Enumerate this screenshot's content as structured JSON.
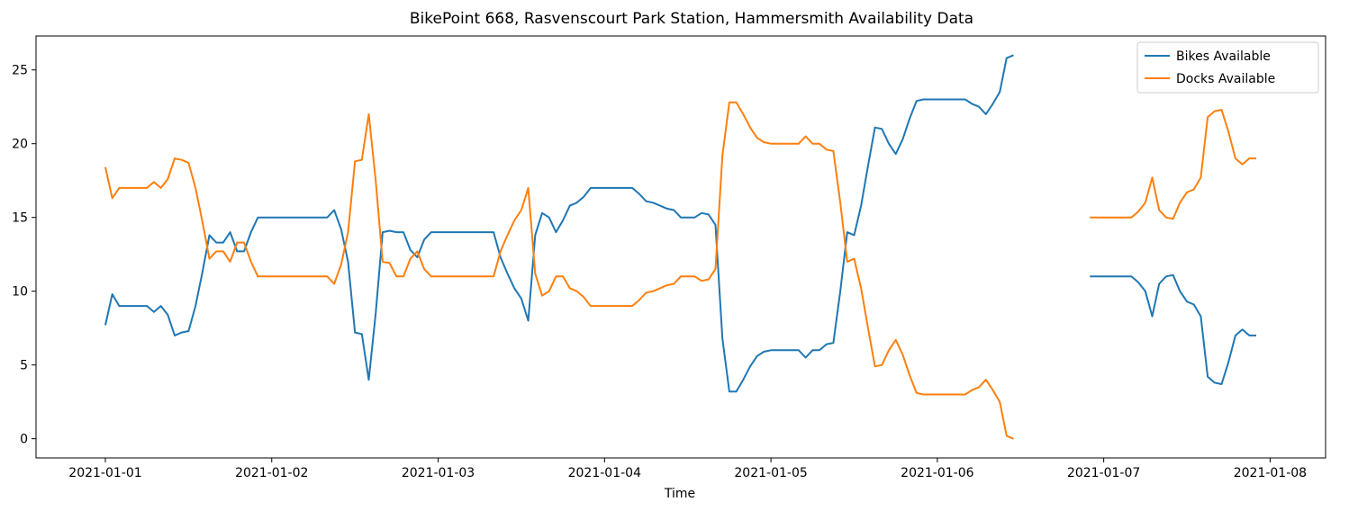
{
  "chart_data": {
    "type": "line",
    "title": "BikePoint 668, Rasvenscourt Park Station, Hammersmith Availability Data",
    "xlabel": "Time",
    "ylabel": "",
    "xlim": [
      "2020-12-31T14:00",
      "2021-01-08T08:00"
    ],
    "ylim": [
      -1.3,
      27.3
    ],
    "x_ticks": [
      "2021-01-01",
      "2021-01-02",
      "2021-01-03",
      "2021-01-04",
      "2021-01-05",
      "2021-01-06",
      "2021-01-07",
      "2021-01-08"
    ],
    "y_ticks": [
      0,
      5,
      10,
      15,
      20,
      25
    ],
    "grid": false,
    "legend_position": "top-right",
    "series": [
      {
        "name": "Bikes Available",
        "color": "#1f77b4",
        "points": [
          [
            "2021-01-01T00:00",
            7.7
          ],
          [
            "2021-01-01T01:00",
            9.8
          ],
          [
            "2021-01-01T02:00",
            9.0
          ],
          [
            "2021-01-01T04:00",
            9.0
          ],
          [
            "2021-01-01T06:00",
            9.0
          ],
          [
            "2021-01-01T07:00",
            8.6
          ],
          [
            "2021-01-01T08:00",
            9.0
          ],
          [
            "2021-01-01T09:00",
            8.4
          ],
          [
            "2021-01-01T10:00",
            7.0
          ],
          [
            "2021-01-01T11:00",
            7.2
          ],
          [
            "2021-01-01T12:00",
            7.3
          ],
          [
            "2021-01-01T13:00",
            9.0
          ],
          [
            "2021-01-01T14:00",
            11.3
          ],
          [
            "2021-01-01T15:00",
            13.8
          ],
          [
            "2021-01-01T16:00",
            13.3
          ],
          [
            "2021-01-01T17:00",
            13.3
          ],
          [
            "2021-01-01T18:00",
            14.0
          ],
          [
            "2021-01-01T19:00",
            12.7
          ],
          [
            "2021-01-01T20:00",
            12.7
          ],
          [
            "2021-01-01T21:00",
            14.0
          ],
          [
            "2021-01-01T22:00",
            15.0
          ],
          [
            "2021-01-02T00:00",
            15.0
          ],
          [
            "2021-01-02T04:00",
            15.0
          ],
          [
            "2021-01-02T08:00",
            15.0
          ],
          [
            "2021-01-02T09:00",
            15.5
          ],
          [
            "2021-01-02T10:00",
            14.2
          ],
          [
            "2021-01-02T11:00",
            12.0
          ],
          [
            "2021-01-02T12:00",
            7.2
          ],
          [
            "2021-01-02T13:00",
            7.1
          ],
          [
            "2021-01-02T14:00",
            4.0
          ],
          [
            "2021-01-02T15:00",
            8.5
          ],
          [
            "2021-01-02T16:00",
            14.0
          ],
          [
            "2021-01-02T17:00",
            14.1
          ],
          [
            "2021-01-02T18:00",
            14.0
          ],
          [
            "2021-01-02T19:00",
            14.0
          ],
          [
            "2021-01-02T20:00",
            12.8
          ],
          [
            "2021-01-02T21:00",
            12.3
          ],
          [
            "2021-01-02T22:00",
            13.5
          ],
          [
            "2021-01-02T23:00",
            14.0
          ],
          [
            "2021-01-03T00:00",
            14.0
          ],
          [
            "2021-01-03T04:00",
            14.0
          ],
          [
            "2021-01-03T08:00",
            14.0
          ],
          [
            "2021-01-03T09:00",
            12.3
          ],
          [
            "2021-01-03T10:00",
            11.2
          ],
          [
            "2021-01-03T11:00",
            10.2
          ],
          [
            "2021-01-03T12:00",
            9.5
          ],
          [
            "2021-01-03T13:00",
            8.0
          ],
          [
            "2021-01-03T14:00",
            13.8
          ],
          [
            "2021-01-03T15:00",
            15.3
          ],
          [
            "2021-01-03T16:00",
            15.0
          ],
          [
            "2021-01-03T17:00",
            14.0
          ],
          [
            "2021-01-03T18:00",
            14.8
          ],
          [
            "2021-01-03T19:00",
            15.8
          ],
          [
            "2021-01-03T20:00",
            16.0
          ],
          [
            "2021-01-03T21:00",
            16.4
          ],
          [
            "2021-01-03T22:00",
            17.0
          ],
          [
            "2021-01-04T00:00",
            17.0
          ],
          [
            "2021-01-04T04:00",
            17.0
          ],
          [
            "2021-01-04T05:00",
            16.6
          ],
          [
            "2021-01-04T06:00",
            16.1
          ],
          [
            "2021-01-04T07:00",
            16.0
          ],
          [
            "2021-01-04T08:00",
            15.8
          ],
          [
            "2021-01-04T09:00",
            15.6
          ],
          [
            "2021-01-04T10:00",
            15.5
          ],
          [
            "2021-01-04T11:00",
            15.0
          ],
          [
            "2021-01-04T12:00",
            15.0
          ],
          [
            "2021-01-04T13:00",
            15.0
          ],
          [
            "2021-01-04T14:00",
            15.3
          ],
          [
            "2021-01-04T15:00",
            15.2
          ],
          [
            "2021-01-04T16:00",
            14.5
          ],
          [
            "2021-01-04T17:00",
            6.8
          ],
          [
            "2021-01-04T18:00",
            3.2
          ],
          [
            "2021-01-04T19:00",
            3.2
          ],
          [
            "2021-01-04T20:00",
            4.0
          ],
          [
            "2021-01-04T21:00",
            4.9
          ],
          [
            "2021-01-04T22:00",
            5.6
          ],
          [
            "2021-01-04T23:00",
            5.9
          ],
          [
            "2021-01-05T00:00",
            6.0
          ],
          [
            "2021-01-05T04:00",
            6.0
          ],
          [
            "2021-01-05T05:00",
            5.5
          ],
          [
            "2021-01-05T06:00",
            6.0
          ],
          [
            "2021-01-05T07:00",
            6.0
          ],
          [
            "2021-01-05T08:00",
            6.4
          ],
          [
            "2021-01-05T09:00",
            6.5
          ],
          [
            "2021-01-05T10:00",
            10.0
          ],
          [
            "2021-01-05T11:00",
            14.0
          ],
          [
            "2021-01-05T12:00",
            13.8
          ],
          [
            "2021-01-05T13:00",
            15.8
          ],
          [
            "2021-01-05T14:00",
            18.5
          ],
          [
            "2021-01-05T15:00",
            21.1
          ],
          [
            "2021-01-05T16:00",
            21.0
          ],
          [
            "2021-01-05T17:00",
            20.0
          ],
          [
            "2021-01-05T18:00",
            19.3
          ],
          [
            "2021-01-05T19:00",
            20.3
          ],
          [
            "2021-01-05T20:00",
            21.7
          ],
          [
            "2021-01-05T21:00",
            22.9
          ],
          [
            "2021-01-05T22:00",
            23.0
          ],
          [
            "2021-01-06T00:00",
            23.0
          ],
          [
            "2021-01-06T04:00",
            23.0
          ],
          [
            "2021-01-06T05:00",
            22.7
          ],
          [
            "2021-01-06T06:00",
            22.5
          ],
          [
            "2021-01-06T07:00",
            22.0
          ],
          [
            "2021-01-06T08:00",
            22.7
          ],
          [
            "2021-01-06T09:00",
            23.5
          ],
          [
            "2021-01-06T10:00",
            25.8
          ],
          [
            "2021-01-06T11:00",
            26.0
          ]
        ]
      },
      {
        "name": "Docks Available",
        "color": "#ff7f0e",
        "points": [
          [
            "2021-01-01T00:00",
            18.4
          ],
          [
            "2021-01-01T01:00",
            16.3
          ],
          [
            "2021-01-01T02:00",
            17.0
          ],
          [
            "2021-01-01T04:00",
            17.0
          ],
          [
            "2021-01-01T06:00",
            17.0
          ],
          [
            "2021-01-01T07:00",
            17.4
          ],
          [
            "2021-01-01T08:00",
            17.0
          ],
          [
            "2021-01-01T09:00",
            17.6
          ],
          [
            "2021-01-01T10:00",
            19.0
          ],
          [
            "2021-01-01T11:00",
            18.9
          ],
          [
            "2021-01-01T12:00",
            18.7
          ],
          [
            "2021-01-01T13:00",
            17.0
          ],
          [
            "2021-01-01T14:00",
            14.7
          ],
          [
            "2021-01-01T15:00",
            12.2
          ],
          [
            "2021-01-01T16:00",
            12.7
          ],
          [
            "2021-01-01T17:00",
            12.7
          ],
          [
            "2021-01-01T18:00",
            12.0
          ],
          [
            "2021-01-01T19:00",
            13.3
          ],
          [
            "2021-01-01T20:00",
            13.3
          ],
          [
            "2021-01-01T21:00",
            12.0
          ],
          [
            "2021-01-01T22:00",
            11.0
          ],
          [
            "2021-01-02T00:00",
            11.0
          ],
          [
            "2021-01-02T04:00",
            11.0
          ],
          [
            "2021-01-02T08:00",
            11.0
          ],
          [
            "2021-01-02T09:00",
            10.5
          ],
          [
            "2021-01-02T10:00",
            11.8
          ],
          [
            "2021-01-02T11:00",
            14.0
          ],
          [
            "2021-01-02T12:00",
            18.8
          ],
          [
            "2021-01-02T13:00",
            18.9
          ],
          [
            "2021-01-02T14:00",
            22.0
          ],
          [
            "2021-01-02T15:00",
            17.5
          ],
          [
            "2021-01-02T16:00",
            12.0
          ],
          [
            "2021-01-02T17:00",
            11.9
          ],
          [
            "2021-01-02T18:00",
            11.0
          ],
          [
            "2021-01-02T19:00",
            11.0
          ],
          [
            "2021-01-02T20:00",
            12.2
          ],
          [
            "2021-01-02T21:00",
            12.7
          ],
          [
            "2021-01-02T22:00",
            11.5
          ],
          [
            "2021-01-02T23:00",
            11.0
          ],
          [
            "2021-01-03T00:00",
            11.0
          ],
          [
            "2021-01-03T04:00",
            11.0
          ],
          [
            "2021-01-03T08:00",
            11.0
          ],
          [
            "2021-01-03T09:00",
            12.7
          ],
          [
            "2021-01-03T10:00",
            13.8
          ],
          [
            "2021-01-03T11:00",
            14.8
          ],
          [
            "2021-01-03T12:00",
            15.5
          ],
          [
            "2021-01-03T13:00",
            17.0
          ],
          [
            "2021-01-03T14:00",
            11.2
          ],
          [
            "2021-01-03T15:00",
            9.7
          ],
          [
            "2021-01-03T16:00",
            10.0
          ],
          [
            "2021-01-03T17:00",
            11.0
          ],
          [
            "2021-01-03T18:00",
            11.0
          ],
          [
            "2021-01-03T19:00",
            10.2
          ],
          [
            "2021-01-03T20:00",
            10.0
          ],
          [
            "2021-01-03T21:00",
            9.6
          ],
          [
            "2021-01-03T22:00",
            9.0
          ],
          [
            "2021-01-04T00:00",
            9.0
          ],
          [
            "2021-01-04T04:00",
            9.0
          ],
          [
            "2021-01-04T05:00",
            9.4
          ],
          [
            "2021-01-04T06:00",
            9.9
          ],
          [
            "2021-01-04T07:00",
            10.0
          ],
          [
            "2021-01-04T08:00",
            10.2
          ],
          [
            "2021-01-04T09:00",
            10.4
          ],
          [
            "2021-01-04T10:00",
            10.5
          ],
          [
            "2021-01-04T11:00",
            11.0
          ],
          [
            "2021-01-04T12:00",
            11.0
          ],
          [
            "2021-01-04T13:00",
            11.0
          ],
          [
            "2021-01-04T14:00",
            10.7
          ],
          [
            "2021-01-04T15:00",
            10.8
          ],
          [
            "2021-01-04T16:00",
            11.5
          ],
          [
            "2021-01-04T17:00",
            19.2
          ],
          [
            "2021-01-04T18:00",
            22.8
          ],
          [
            "2021-01-04T19:00",
            22.8
          ],
          [
            "2021-01-04T20:00",
            22.0
          ],
          [
            "2021-01-04T21:00",
            21.1
          ],
          [
            "2021-01-04T22:00",
            20.4
          ],
          [
            "2021-01-04T23:00",
            20.1
          ],
          [
            "2021-01-05T00:00",
            20.0
          ],
          [
            "2021-01-05T04:00",
            20.0
          ],
          [
            "2021-01-05T05:00",
            20.5
          ],
          [
            "2021-01-05T06:00",
            20.0
          ],
          [
            "2021-01-05T07:00",
            20.0
          ],
          [
            "2021-01-05T08:00",
            19.6
          ],
          [
            "2021-01-05T09:00",
            19.5
          ],
          [
            "2021-01-05T10:00",
            16.0
          ],
          [
            "2021-01-05T11:00",
            12.0
          ],
          [
            "2021-01-05T12:00",
            12.2
          ],
          [
            "2021-01-05T13:00",
            10.2
          ],
          [
            "2021-01-05T14:00",
            7.5
          ],
          [
            "2021-01-05T15:00",
            4.9
          ],
          [
            "2021-01-05T16:00",
            5.0
          ],
          [
            "2021-01-05T17:00",
            6.0
          ],
          [
            "2021-01-05T18:00",
            6.7
          ],
          [
            "2021-01-05T19:00",
            5.7
          ],
          [
            "2021-01-05T20:00",
            4.3
          ],
          [
            "2021-01-05T21:00",
            3.1
          ],
          [
            "2021-01-05T22:00",
            3.0
          ],
          [
            "2021-01-06T00:00",
            3.0
          ],
          [
            "2021-01-06T04:00",
            3.0
          ],
          [
            "2021-01-06T05:00",
            3.3
          ],
          [
            "2021-01-06T06:00",
            3.5
          ],
          [
            "2021-01-06T07:00",
            4.0
          ],
          [
            "2021-01-06T08:00",
            3.3
          ],
          [
            "2021-01-06T09:00",
            2.5
          ],
          [
            "2021-01-06T10:00",
            0.2
          ],
          [
            "2021-01-06T11:00",
            0.0
          ]
        ]
      },
      {
        "name": "Bikes Available",
        "color": "#1f77b4",
        "points": [
          [
            "2021-01-06T22:00",
            11.0
          ],
          [
            "2021-01-07T00:00",
            11.0
          ],
          [
            "2021-01-07T04:00",
            11.0
          ],
          [
            "2021-01-07T05:00",
            10.6
          ],
          [
            "2021-01-07T06:00",
            10.0
          ],
          [
            "2021-01-07T07:00",
            8.3
          ],
          [
            "2021-01-07T08:00",
            10.5
          ],
          [
            "2021-01-07T09:00",
            11.0
          ],
          [
            "2021-01-07T10:00",
            11.1
          ],
          [
            "2021-01-07T11:00",
            10.0
          ],
          [
            "2021-01-07T12:00",
            9.3
          ],
          [
            "2021-01-07T13:00",
            9.1
          ],
          [
            "2021-01-07T14:00",
            8.3
          ],
          [
            "2021-01-07T15:00",
            4.2
          ],
          [
            "2021-01-07T16:00",
            3.8
          ],
          [
            "2021-01-07T17:00",
            3.7
          ],
          [
            "2021-01-07T18:00",
            5.2
          ],
          [
            "2021-01-07T19:00",
            7.0
          ],
          [
            "2021-01-07T20:00",
            7.4
          ],
          [
            "2021-01-07T21:00",
            7.0
          ],
          [
            "2021-01-07T22:00",
            7.0
          ]
        ]
      },
      {
        "name": "Docks Available",
        "color": "#ff7f0e",
        "points": [
          [
            "2021-01-06T22:00",
            15.0
          ],
          [
            "2021-01-07T00:00",
            15.0
          ],
          [
            "2021-01-07T04:00",
            15.0
          ],
          [
            "2021-01-07T05:00",
            15.4
          ],
          [
            "2021-01-07T06:00",
            16.0
          ],
          [
            "2021-01-07T07:00",
            17.7
          ],
          [
            "2021-01-07T08:00",
            15.5
          ],
          [
            "2021-01-07T09:00",
            15.0
          ],
          [
            "2021-01-07T10:00",
            14.9
          ],
          [
            "2021-01-07T11:00",
            16.0
          ],
          [
            "2021-01-07T12:00",
            16.7
          ],
          [
            "2021-01-07T13:00",
            16.9
          ],
          [
            "2021-01-07T14:00",
            17.7
          ],
          [
            "2021-01-07T15:00",
            21.8
          ],
          [
            "2021-01-07T16:00",
            22.2
          ],
          [
            "2021-01-07T17:00",
            22.3
          ],
          [
            "2021-01-07T18:00",
            20.8
          ],
          [
            "2021-01-07T19:00",
            19.0
          ],
          [
            "2021-01-07T20:00",
            18.6
          ],
          [
            "2021-01-07T21:00",
            19.0
          ],
          [
            "2021-01-07T22:00",
            19.0
          ]
        ]
      }
    ],
    "legend": [
      {
        "label": "Bikes Available",
        "color": "#1f77b4"
      },
      {
        "label": "Docks Available",
        "color": "#ff7f0e"
      }
    ]
  }
}
